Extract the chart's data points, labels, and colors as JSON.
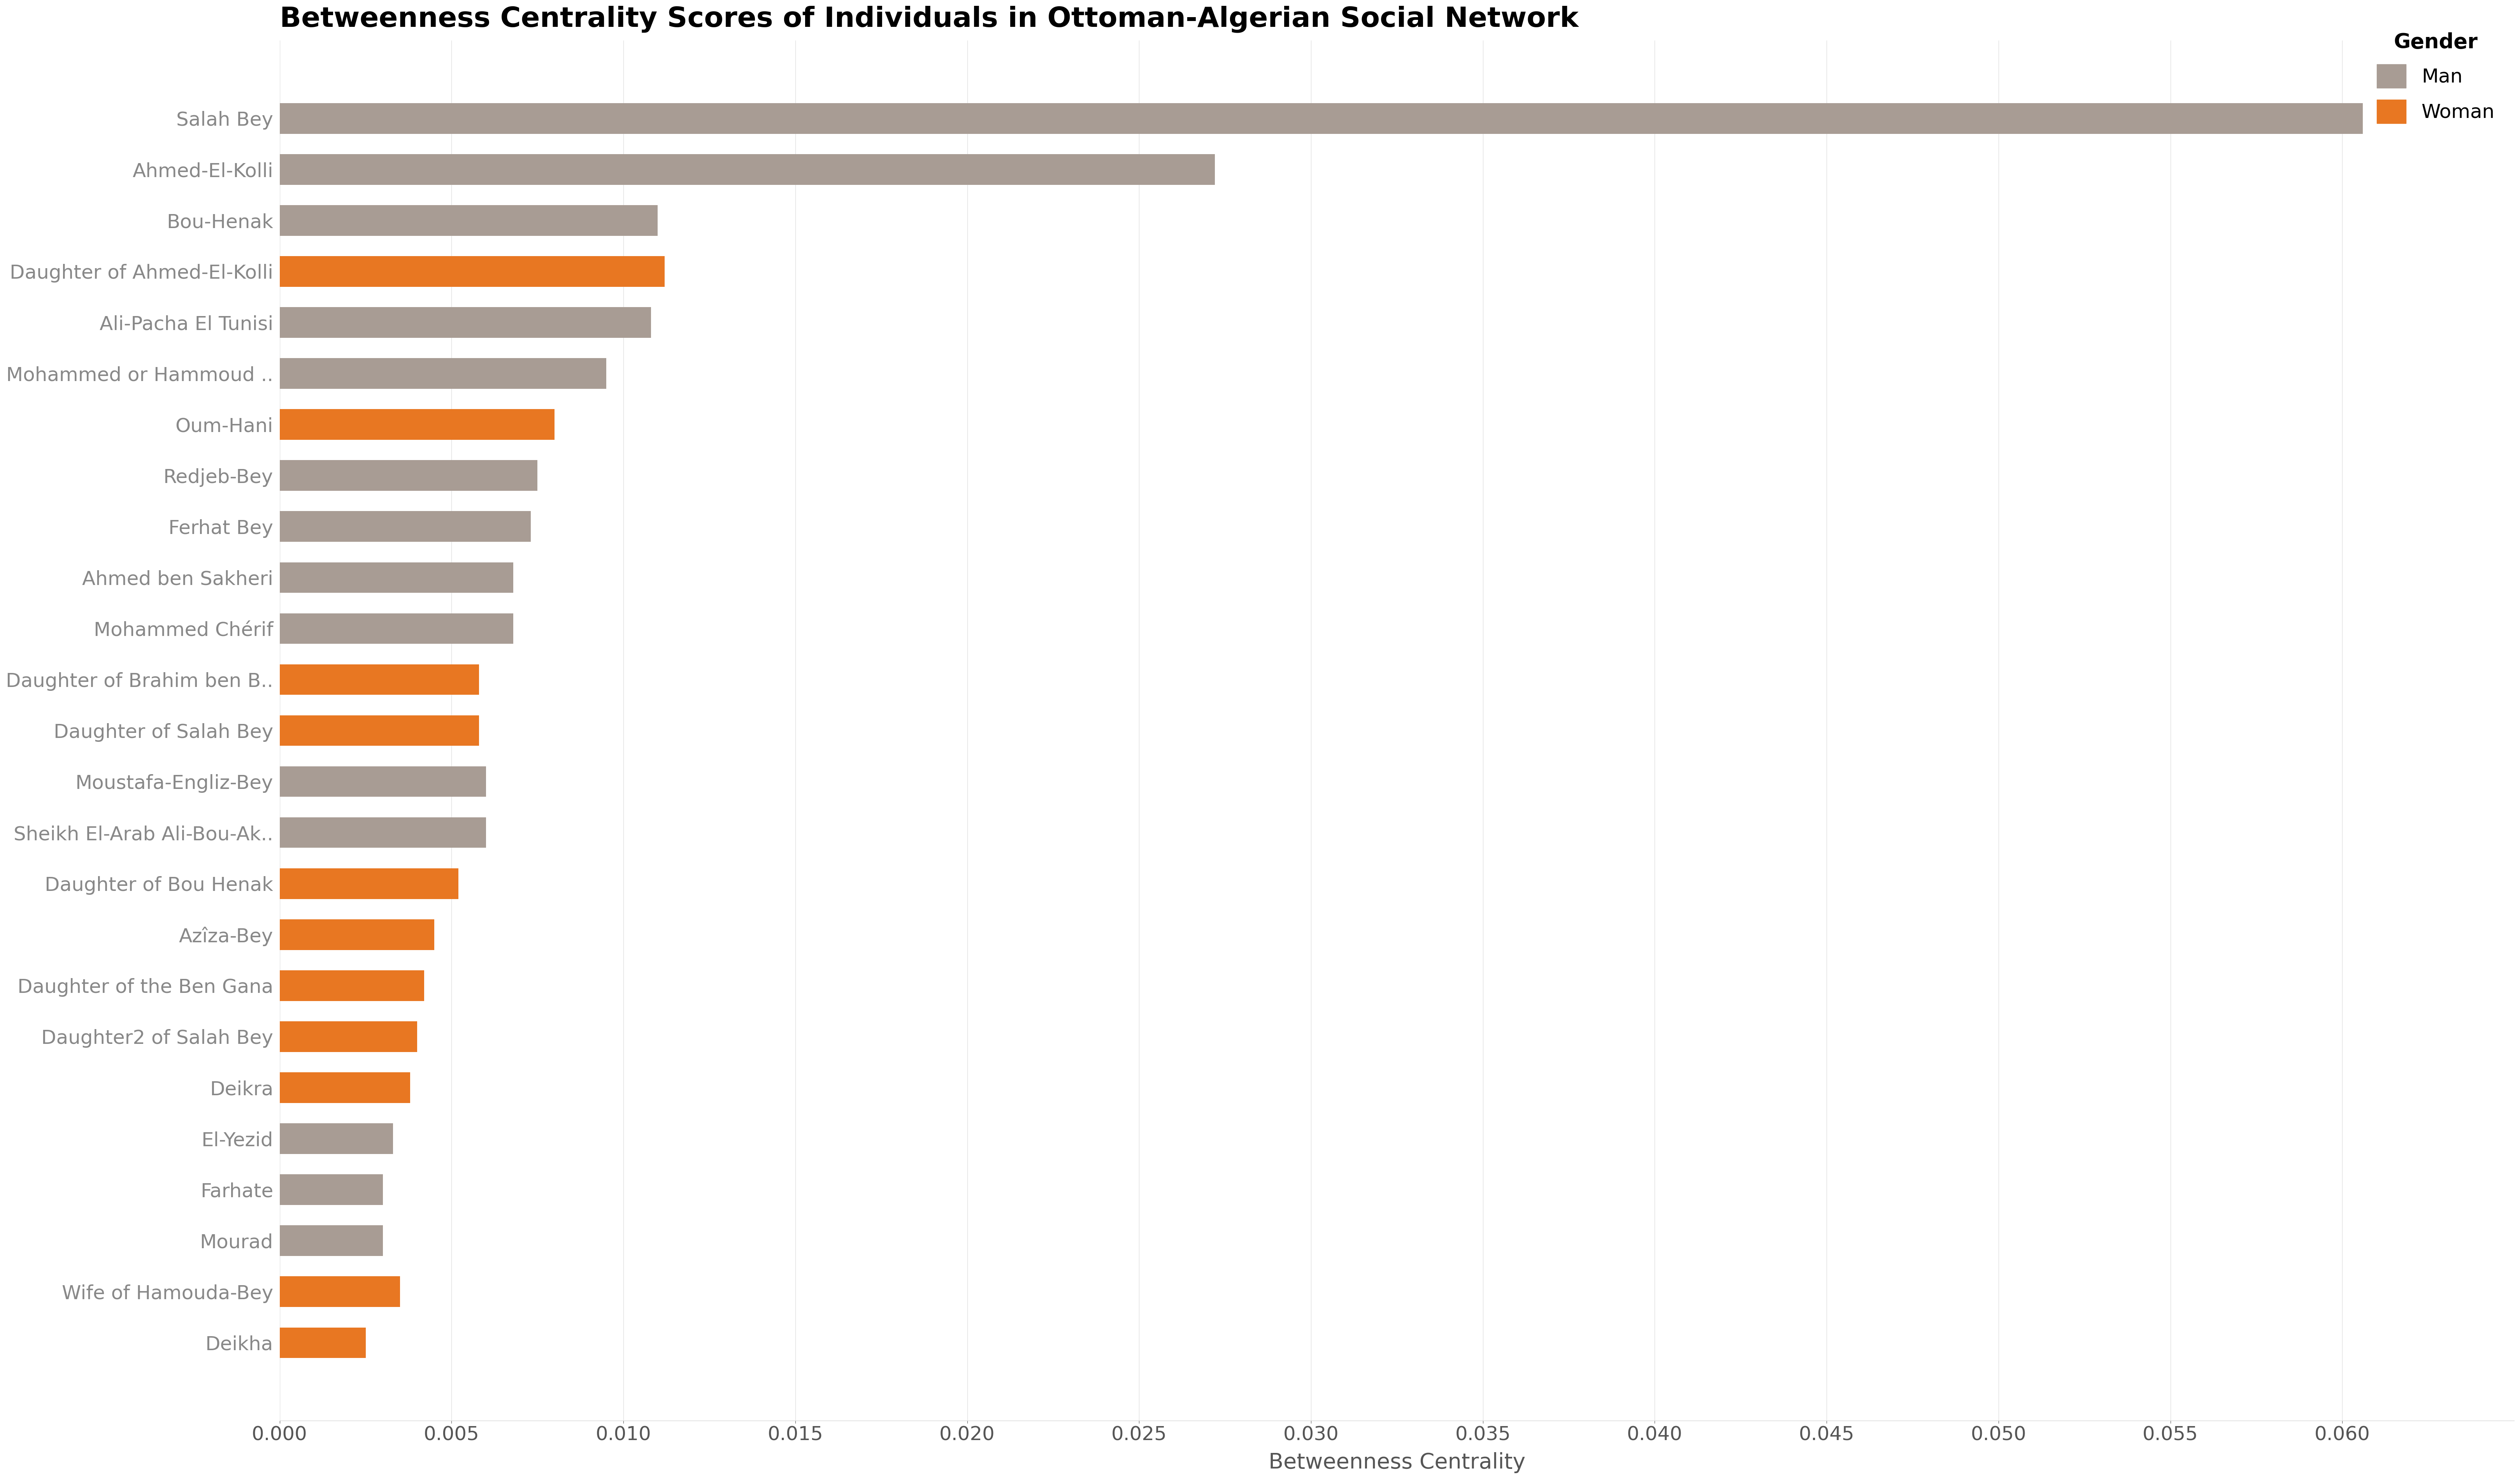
{
  "title": "Betweenness Centrality Scores of Individuals in Ottoman-Algerian Social Network",
  "xlabel": "Betweenness Centrality",
  "names": [
    "Salah Bey",
    "Ahmed-El-Kolli",
    "Bou-Henak",
    "Daughter of Ahmed-El-Kolli",
    "Ali-Pacha El Tunisi",
    "Mohammed or Hammoud ..",
    "Oum-Hani",
    "Redjeb-Bey",
    "Ferhat Bey",
    "Ahmed ben Sakheri",
    "Mohammed Chérif",
    "Daughter of Brahim ben B..",
    "Daughter of Salah Bey",
    "Moustafa-Engliz-Bey",
    "Sheikh El-Arab Ali-Bou-Ak..",
    "Daughter of Bou Henak",
    "Azîza-Bey",
    "Daughter of the Ben Gana",
    "Daughter2 of Salah Bey",
    "Deikra",
    "El-Yezid",
    "Farhate",
    "Mourad",
    "Wife of Hamouda-Bey",
    "Deikha"
  ],
  "values": [
    0.0606,
    0.0272,
    0.011,
    0.0112,
    0.0108,
    0.0095,
    0.008,
    0.0075,
    0.0073,
    0.0068,
    0.0068,
    0.0058,
    0.0058,
    0.006,
    0.006,
    0.0052,
    0.0045,
    0.0042,
    0.004,
    0.0038,
    0.0033,
    0.003,
    0.003,
    0.0035,
    0.0025
  ],
  "genders": [
    "Man",
    "Man",
    "Man",
    "Woman",
    "Man",
    "Man",
    "Woman",
    "Man",
    "Man",
    "Man",
    "Man",
    "Woman",
    "Woman",
    "Man",
    "Man",
    "Woman",
    "Woman",
    "Woman",
    "Woman",
    "Woman",
    "Man",
    "Man",
    "Man",
    "Woman",
    "Woman"
  ],
  "man_color": "#a89c94",
  "woman_color": "#e87722",
  "background_color": "#ffffff",
  "title_fontsize": 52,
  "label_fontsize": 40,
  "tick_fontsize": 36,
  "legend_title_fontsize": 38,
  "legend_fontsize": 36,
  "xlim": [
    0,
    0.065
  ],
  "xticks": [
    0.0,
    0.005,
    0.01,
    0.015,
    0.02,
    0.025,
    0.03,
    0.035,
    0.04,
    0.045,
    0.05,
    0.055,
    0.06
  ]
}
